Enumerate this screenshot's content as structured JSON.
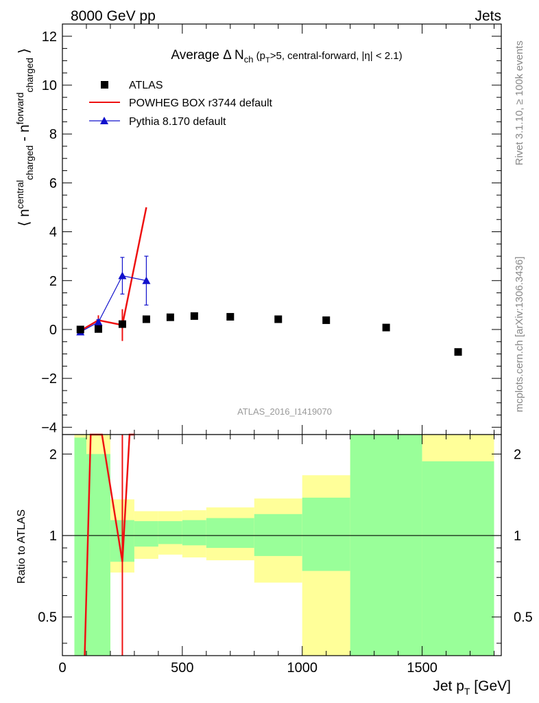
{
  "header": {
    "left": "8000 GeV pp",
    "right": "Jets"
  },
  "side_labels": {
    "rivet": "Rivet 3.1.10, ≥ 100k events",
    "mcplots": "mcplots.cern.ch [arXiv:1306.3436]"
  },
  "analysis_id": "ATLAS_2016_I1419070",
  "colors": {
    "atlas": "#000000",
    "powheg": "#ee1111",
    "pythia": "#1111cc",
    "band_green": "#99ff99",
    "band_yellow": "#ffff99"
  },
  "chart_data": [
    {
      "type": "scatter",
      "panel": "main",
      "title": "Average Δ N_ch (p_T>5, central-forward, |η| < 2.1)",
      "ylabel": "⟨ n^central_charged - n^forward_charged ⟩",
      "xlim": [
        0,
        1830
      ],
      "ylim": [
        -4.3,
        12.5
      ],
      "yticks": [
        -4,
        -2,
        0,
        2,
        4,
        6,
        8,
        10,
        12
      ],
      "legend_position": "top-left",
      "series": [
        {
          "name": "ATLAS",
          "style": "markers",
          "x": [
            75,
            150,
            250,
            350,
            450,
            550,
            700,
            900,
            1100,
            1350,
            1650
          ],
          "y": [
            0.0,
            0.02,
            0.22,
            0.42,
            0.5,
            0.55,
            0.52,
            0.42,
            0.38,
            0.08,
            -0.92
          ]
        },
        {
          "name": "POWHEG BOX r3744 default",
          "style": "line",
          "x": [
            75,
            150,
            250,
            350
          ],
          "y": [
            -0.05,
            0.38,
            0.18,
            5.0
          ],
          "yerr": [
            0.05,
            0.2,
            0.65,
            0.0
          ]
        },
        {
          "name": "Pythia 8.170 default",
          "style": "line-markers",
          "x": [
            75,
            150,
            250,
            350
          ],
          "y": [
            -0.1,
            0.3,
            2.2,
            2.0
          ],
          "yerr": [
            0.05,
            0.1,
            0.75,
            1.0
          ]
        }
      ]
    },
    {
      "type": "line",
      "panel": "ratio",
      "ylabel": "Ratio to ATLAS",
      "xlabel": "Jet p_T [GeV]",
      "xlim": [
        0,
        1830
      ],
      "ylim": [
        0.36,
        2.36
      ],
      "scale": "log",
      "xticks": [
        0,
        500,
        1000,
        1500
      ],
      "yticks": [
        0.5,
        1,
        2
      ],
      "bands": {
        "bins": [
          [
            50,
            100
          ],
          [
            100,
            200
          ],
          [
            200,
            300
          ],
          [
            300,
            400
          ],
          [
            400,
            500
          ],
          [
            500,
            600
          ],
          [
            600,
            800
          ],
          [
            800,
            1000
          ],
          [
            1000,
            1200
          ],
          [
            1200,
            1500
          ],
          [
            1500,
            1800
          ]
        ],
        "stat_lo": [
          0.36,
          0.36,
          0.8,
          0.91,
          0.93,
          0.92,
          0.9,
          0.84,
          0.74,
          0.36,
          0.36
        ],
        "stat_hi": [
          2.3,
          2.0,
          1.14,
          1.13,
          1.13,
          1.14,
          1.16,
          1.2,
          1.38,
          2.36,
          1.88
        ],
        "total_lo": [
          0.36,
          0.36,
          0.73,
          0.82,
          0.85,
          0.83,
          0.81,
          0.67,
          0.36,
          0.36,
          0.36
        ],
        "total_hi": [
          2.36,
          2.36,
          1.36,
          1.23,
          1.23,
          1.24,
          1.27,
          1.37,
          1.67,
          2.36,
          2.36
        ]
      },
      "series": [
        {
          "name": "POWHEG BOX r3744 default",
          "x": [
            93,
            118,
            135,
            165,
            250,
            280,
            300
          ],
          "y": [
            0.36,
            2.36,
            2.36,
            2.36,
            0.8,
            2.36,
            2.36
          ]
        },
        {
          "name": "POWHEG error bar",
          "x": [
            250,
            250
          ],
          "y": [
            0.36,
            2.36
          ]
        }
      ]
    }
  ]
}
